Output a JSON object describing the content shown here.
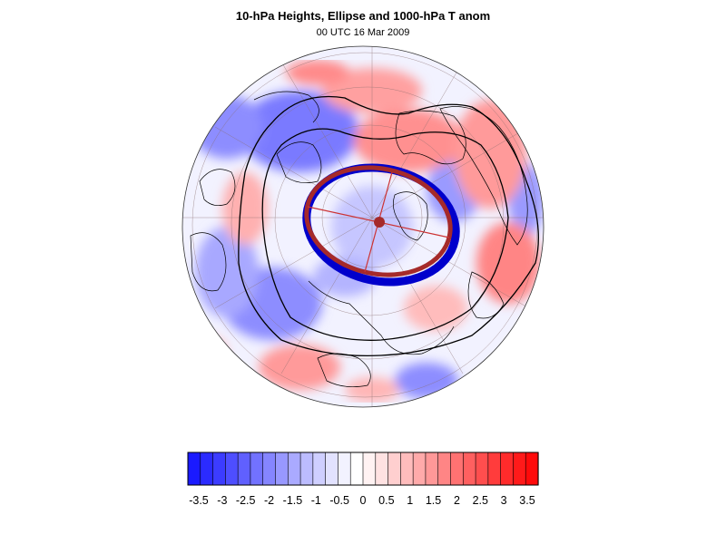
{
  "figure": {
    "title": "10-hPa Heights, Ellipse and 1000-hPa T anom",
    "subtitle": "00 UTC 16 Mar 2009"
  },
  "colorbar": {
    "labels": [
      "-3.5",
      "-3",
      "-2.5",
      "-2",
      "-1.5",
      "-1",
      "-0.5",
      "0",
      "0.5",
      "1",
      "1.5",
      "2",
      "2.5",
      "3",
      "3.5"
    ],
    "colors": [
      "#1a1aff",
      "#2b2bff",
      "#3c3cff",
      "#4e4eff",
      "#6060ff",
      "#7272ff",
      "#8585ff",
      "#9898ff",
      "#aaaaff",
      "#bcbcff",
      "#cfcfff",
      "#e2e2ff",
      "#f2f2ff",
      "#ffffff",
      "#fff2f2",
      "#ffe2e2",
      "#ffcfcf",
      "#ffbcbc",
      "#ffaaaa",
      "#ff9898",
      "#ff8585",
      "#ff7272",
      "#ff6060",
      "#ff4e4e",
      "#ff3c3c",
      "#ff2b2b",
      "#ff1a1a",
      "#ff0a0a"
    ]
  },
  "map": {
    "projection": "polar stereographic (north)",
    "ellipse_color": "#a52a2a",
    "ellipse_fill_color": "#0000cc",
    "contour_color": "#000000"
  }
}
